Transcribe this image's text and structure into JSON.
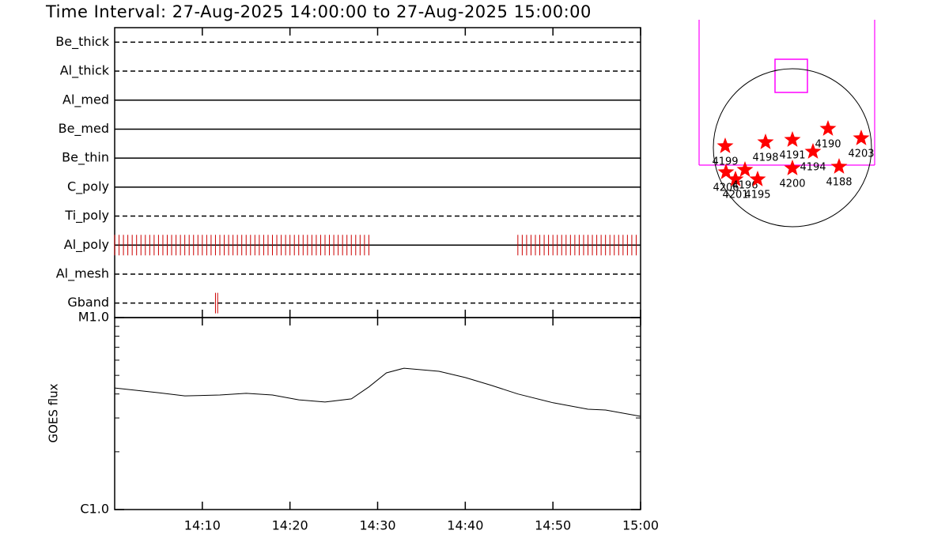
{
  "chart_data": [
    {
      "type": "timeline",
      "title": "Time Interval: 27-Aug-2025 14:00:00 to 27-Aug-2025 15:00:00",
      "xlim": [
        "14:00",
        "15:00"
      ],
      "xticks": [
        "14:10",
        "14:20",
        "14:30",
        "14:40",
        "14:50",
        "15:00"
      ],
      "color": "#cc0000",
      "rows": [
        {
          "name": "Be_thick",
          "line_style": "dashed",
          "times": []
        },
        {
          "name": "Al_thick",
          "line_style": "dashed",
          "times": []
        },
        {
          "name": "Al_med",
          "line_style": "solid",
          "times": []
        },
        {
          "name": "Be_med",
          "line_style": "solid",
          "times": []
        },
        {
          "name": "Be_thin",
          "line_style": "solid",
          "times": []
        },
        {
          "name": "C_poly",
          "line_style": "solid",
          "times": []
        },
        {
          "name": "Ti_poly",
          "line_style": "dashed",
          "times": []
        },
        {
          "name": "Al_poly",
          "line_style": "solid",
          "times": [
            "14:00:00",
            "14:00:30",
            "14:01:00",
            "14:01:30",
            "14:02:00",
            "14:02:30",
            "14:03:00",
            "14:03:30",
            "14:04:00",
            "14:04:30",
            "14:05:00",
            "14:05:30",
            "14:06:00",
            "14:06:30",
            "14:07:00",
            "14:07:30",
            "14:08:00",
            "14:08:30",
            "14:09:00",
            "14:09:30",
            "14:10:00",
            "14:10:30",
            "14:11:00",
            "14:11:30",
            "14:12:00",
            "14:12:30",
            "14:13:00",
            "14:13:30",
            "14:14:00",
            "14:14:30",
            "14:15:00",
            "14:15:30",
            "14:16:00",
            "14:16:30",
            "14:17:00",
            "14:17:30",
            "14:18:00",
            "14:18:30",
            "14:19:00",
            "14:19:30",
            "14:20:00",
            "14:20:30",
            "14:21:00",
            "14:21:30",
            "14:22:00",
            "14:22:30",
            "14:23:00",
            "14:23:30",
            "14:24:00",
            "14:24:30",
            "14:25:00",
            "14:25:30",
            "14:26:00",
            "14:26:30",
            "14:27:00",
            "14:27:30",
            "14:28:00",
            "14:28:30",
            "14:29:00",
            "14:46:00",
            "14:46:30",
            "14:47:00",
            "14:47:30",
            "14:48:00",
            "14:48:30",
            "14:49:00",
            "14:49:30",
            "14:50:00",
            "14:50:30",
            "14:51:00",
            "14:51:30",
            "14:52:00",
            "14:52:30",
            "14:53:00",
            "14:53:30",
            "14:54:00",
            "14:54:30",
            "14:55:00",
            "14:55:30",
            "14:56:00",
            "14:56:30",
            "14:57:00",
            "14:57:30",
            "14:58:00",
            "14:58:30",
            "14:59:00",
            "14:59:30"
          ]
        },
        {
          "name": "Al_mesh",
          "line_style": "dashed",
          "times": []
        },
        {
          "name": "Gband",
          "line_style": "dashed",
          "times": [
            "14:11:30",
            "14:11:45"
          ]
        }
      ]
    },
    {
      "type": "line",
      "ylabel": "GOES flux",
      "log_scale": true,
      "color": "#000000",
      "x": [
        "14:00",
        "14:05",
        "14:08",
        "14:12",
        "14:15",
        "14:18",
        "14:21",
        "14:24",
        "14:27",
        "14:29",
        "14:31",
        "14:33",
        "14:37",
        "14:40",
        "14:43",
        "14:46",
        "14:50",
        "14:54",
        "14:56",
        "15:00"
      ],
      "values": [
        4.3e-06,
        4.06e-06,
        3.91e-06,
        3.95e-06,
        4.03e-06,
        3.95e-06,
        3.73e-06,
        3.63e-06,
        3.77e-06,
        4.35e-06,
        5.15e-06,
        5.45e-06,
        5.25e-06,
        4.87e-06,
        4.43e-06,
        4e-06,
        3.6e-06,
        3.33e-06,
        3.3e-06,
        3.06e-06
      ],
      "xlim": [
        "14:00",
        "15:00"
      ],
      "xticks": [
        "14:10",
        "14:20",
        "14:30",
        "14:40",
        "14:50",
        "15:00"
      ],
      "ylim": [
        1e-06,
        1e-05
      ],
      "yticks": [
        {
          "value": 1e-06,
          "label": "C1.0"
        },
        {
          "value": 1e-05,
          "label": "M1.0"
        }
      ],
      "yminorticks": [
        2e-06,
        3e-06,
        4e-06,
        5e-06,
        6e-06,
        7e-06,
        8e-06,
        9e-06
      ]
    },
    {
      "type": "map",
      "color": "#ff0000",
      "points": [
        {
          "label": "4199",
          "x": -0.85,
          "y": 0.02
        },
        {
          "label": "4198",
          "x": -0.34,
          "y": 0.07
        },
        {
          "label": "4191",
          "x": 0.0,
          "y": 0.1
        },
        {
          "label": "4190",
          "x": 0.45,
          "y": 0.24
        },
        {
          "label": "4203",
          "x": 0.87,
          "y": 0.12
        },
        {
          "label": "4194",
          "x": 0.26,
          "y": -0.05
        },
        {
          "label": "4200",
          "x": 0.0,
          "y": -0.26
        },
        {
          "label": "4188",
          "x": 0.59,
          "y": -0.24
        },
        {
          "label": "4206",
          "x": -0.84,
          "y": -0.31
        },
        {
          "label": "4201",
          "x": -0.72,
          "y": -0.4
        },
        {
          "label": "4196",
          "x": -0.6,
          "y": -0.28
        },
        {
          "label": "4195",
          "x": -0.44,
          "y": -0.4
        }
      ]
    }
  ]
}
